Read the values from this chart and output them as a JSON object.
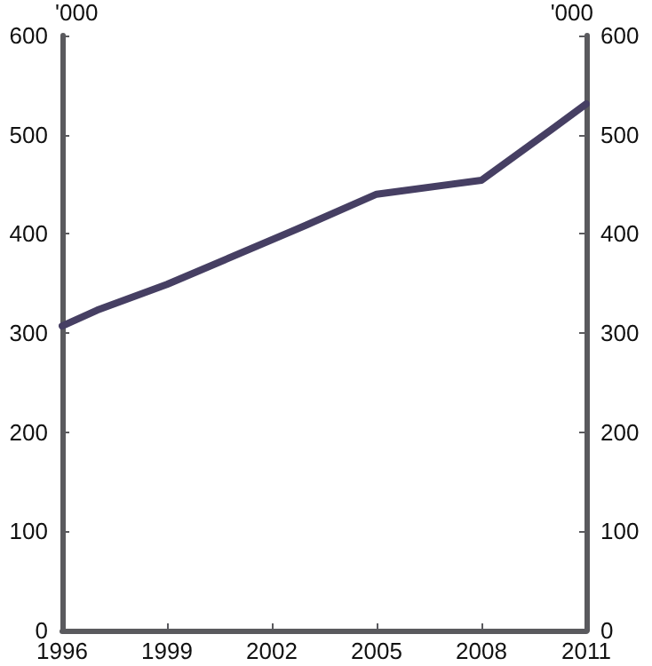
{
  "chart_data": {
    "type": "line",
    "ylabel": "'000",
    "y2label": "'000",
    "x": [
      1996,
      1997,
      1999,
      2003,
      2005,
      2008,
      2010,
      2011
    ],
    "series": [
      {
        "color": "#463f63",
        "values": [
          307,
          323,
          349,
          409,
          440,
          454,
          505,
          531
        ]
      }
    ],
    "xlim": [
      1996,
      2011
    ],
    "xticks": [
      1996,
      1999,
      2002,
      2005,
      2008,
      2011
    ],
    "ylim": [
      0,
      600
    ],
    "yticks": [
      0,
      100,
      200,
      300,
      400,
      500,
      600
    ],
    "y2lim": [
      0,
      600
    ],
    "y2ticks": [
      0,
      100,
      200,
      300,
      400,
      500,
      600
    ],
    "grid": false,
    "marker": "none",
    "line_style": "solid"
  }
}
